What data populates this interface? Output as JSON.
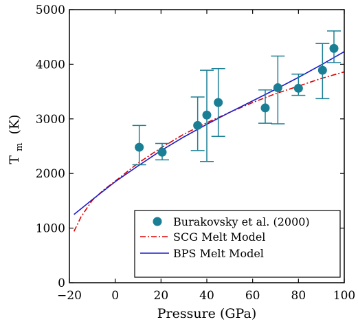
{
  "chart_data": {
    "type": "scatter",
    "xlabel": "Pressure (GPa)",
    "ylabel": {
      "main": "T",
      "sub": "m",
      "unit": "(K)"
    },
    "xlim": [
      -20,
      100
    ],
    "ylim": [
      0,
      5000
    ],
    "xticks": [
      -20,
      0,
      20,
      40,
      60,
      80,
      100
    ],
    "yticks": [
      0,
      1000,
      2000,
      3000,
      4000,
      5000
    ],
    "grid": false,
    "legend_position": "bottom-right",
    "series": [
      {
        "name": "Burakovsky et al. (2000)",
        "kind": "points_with_errorbars",
        "color": "#1a7f95",
        "points": [
          {
            "x": 10.5,
            "y": 2480,
            "ylow": 2160,
            "yhigh": 2880
          },
          {
            "x": 20.5,
            "y": 2390,
            "ylow": 2250,
            "yhigh": 2550
          },
          {
            "x": 36,
            "y": 2880,
            "ylow": 2420,
            "yhigh": 3400
          },
          {
            "x": 40,
            "y": 3070,
            "ylow": 2220,
            "yhigh": 3890
          },
          {
            "x": 45,
            "y": 3300,
            "ylow": 2680,
            "yhigh": 3920
          },
          {
            "x": 65.5,
            "y": 3200,
            "ylow": 2920,
            "yhigh": 3530
          },
          {
            "x": 71,
            "y": 3570,
            "ylow": 2910,
            "yhigh": 4150
          },
          {
            "x": 80,
            "y": 3560,
            "ylow": 3430,
            "yhigh": 3820
          },
          {
            "x": 90.5,
            "y": 3890,
            "ylow": 3370,
            "yhigh": 4380
          },
          {
            "x": 95.5,
            "y": 4290,
            "ylow": 4030,
            "yhigh": 4610
          }
        ]
      },
      {
        "name": "SCG Melt Model",
        "kind": "line",
        "style": "dash-dot",
        "color": "#dd0000",
        "x": [
          -18,
          -15,
          -10,
          -5,
          0,
          10,
          20,
          30,
          40,
          50,
          60,
          70,
          80,
          90,
          100
        ],
        "y": [
          940,
          1200,
          1510,
          1700,
          1860,
          2190,
          2470,
          2720,
          2930,
          3120,
          3300,
          3460,
          3600,
          3740,
          3860
        ]
      },
      {
        "name": "BPS Melt Model",
        "kind": "line",
        "style": "solid",
        "color": "#1a1acc",
        "x": [
          -18,
          -10,
          0,
          10,
          20,
          30,
          40,
          50,
          60,
          70,
          80,
          90,
          100
        ],
        "y": [
          1250,
          1520,
          1850,
          2140,
          2420,
          2670,
          2900,
          3120,
          3330,
          3540,
          3760,
          3990,
          4230
        ]
      }
    ]
  }
}
